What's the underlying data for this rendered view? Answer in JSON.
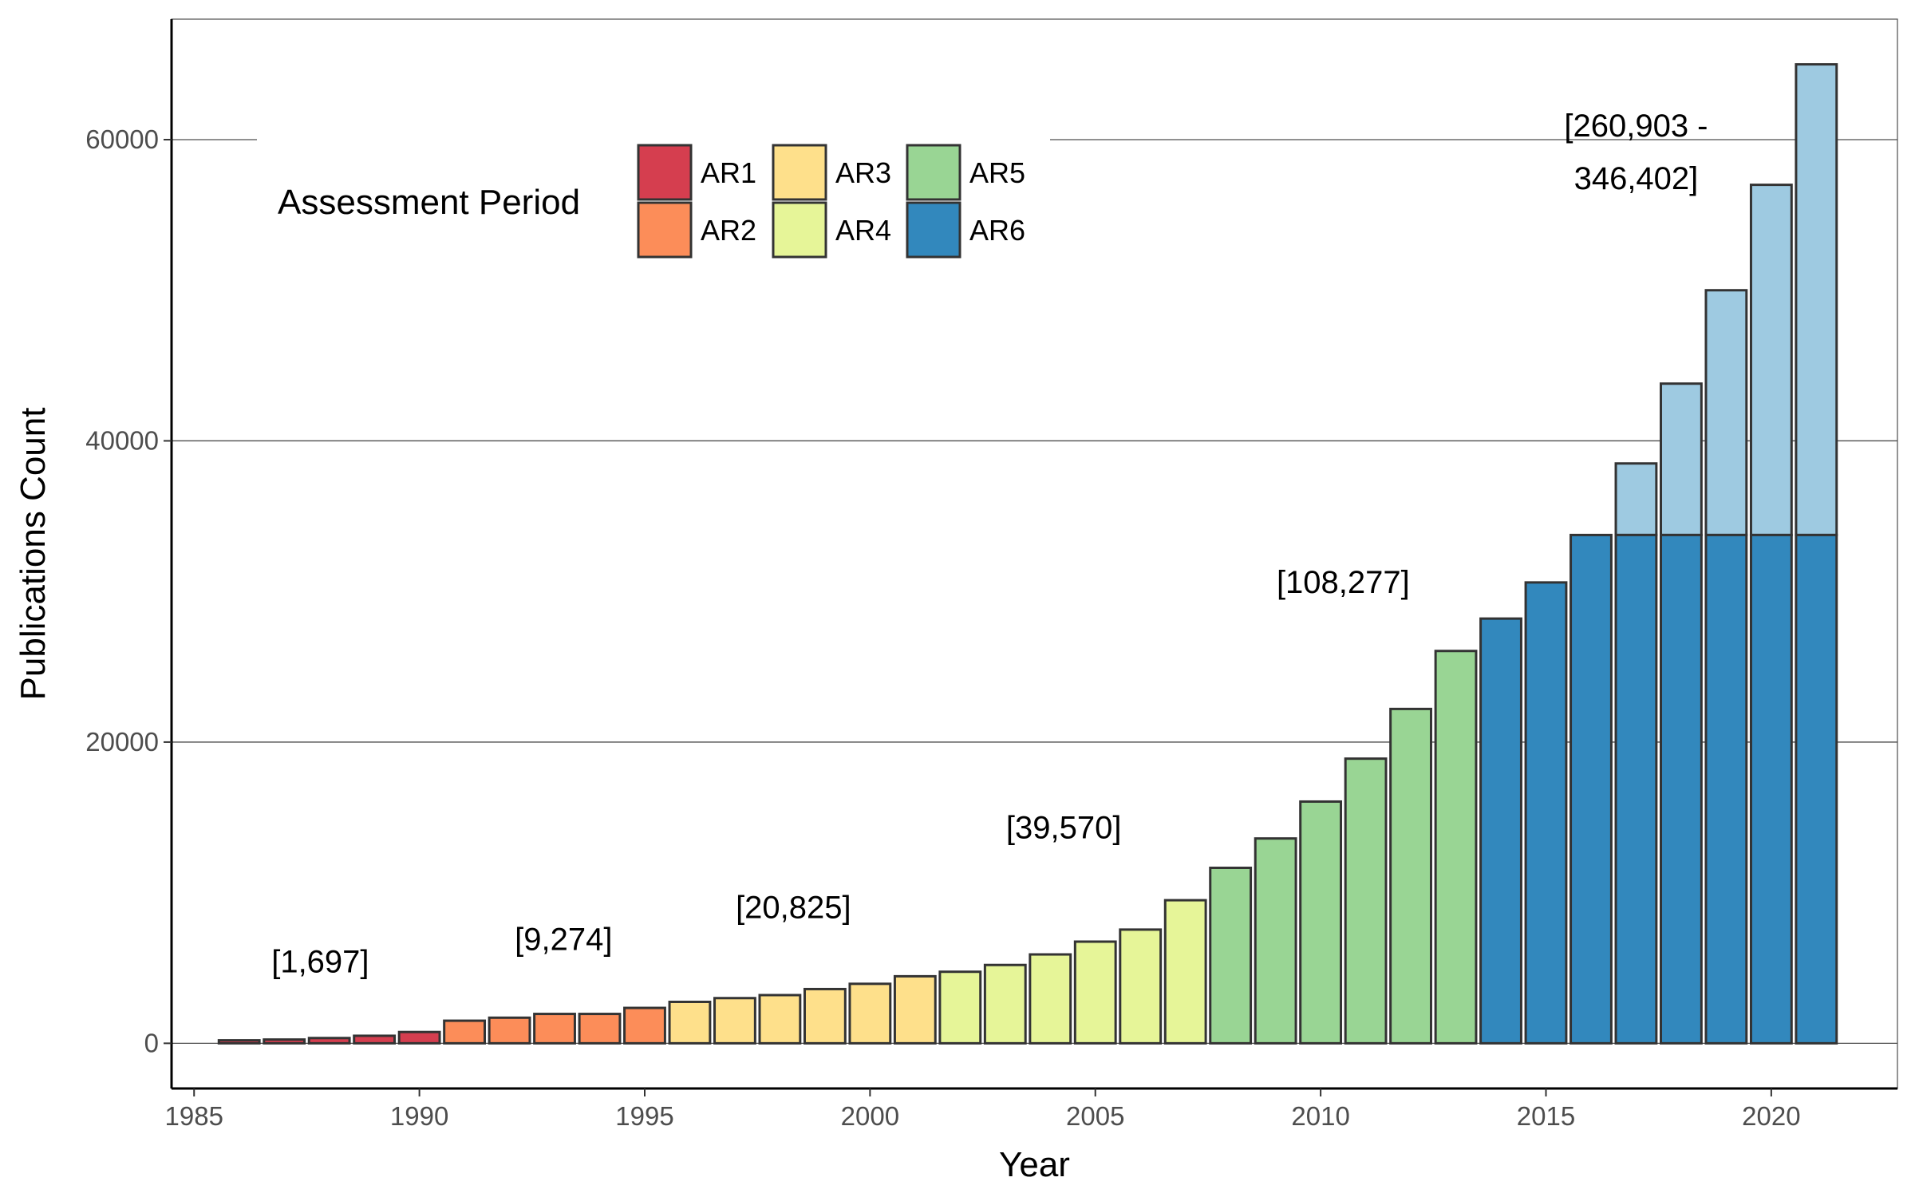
{
  "chart_data": {
    "type": "bar",
    "xlabel": "Year",
    "ylabel": "Publications Count",
    "xlim": [
      1984.5,
      2022.8
    ],
    "ylim": [
      -3000,
      68000
    ],
    "x_ticks": [
      "1985",
      "1990",
      "1995",
      "2000",
      "2005",
      "2010",
      "2015",
      "2020"
    ],
    "y_ticks": [
      "0",
      "20000",
      "40000",
      "60000"
    ],
    "grid": "horizontal major gridlines",
    "legend": {
      "title": "Assessment Period",
      "placement": "top-left",
      "entries": [
        {
          "label": "AR1",
          "color": "#d53e4f"
        },
        {
          "label": "AR2",
          "color": "#fc8d59"
        },
        {
          "label": "AR3",
          "color": "#fee08b"
        },
        {
          "label": "AR4",
          "color": "#e6f598"
        },
        {
          "label": "AR5",
          "color": "#99d594"
        },
        {
          "label": "AR6",
          "color": "#3288bd"
        }
      ]
    },
    "projection_color": "#9ecae1",
    "bars": [
      {
        "year": 1986,
        "period": "AR1",
        "value": 200
      },
      {
        "year": 1987,
        "period": "AR1",
        "value": 250
      },
      {
        "year": 1988,
        "period": "AR1",
        "value": 350
      },
      {
        "year": 1989,
        "period": "AR1",
        "value": 500
      },
      {
        "year": 1990,
        "period": "AR1",
        "value": 750
      },
      {
        "year": 1991,
        "period": "AR2",
        "value": 1500
      },
      {
        "year": 1992,
        "period": "AR2",
        "value": 1700
      },
      {
        "year": 1993,
        "period": "AR2",
        "value": 1950
      },
      {
        "year": 1994,
        "period": "AR2",
        "value": 1950
      },
      {
        "year": 1995,
        "period": "AR2",
        "value": 2350
      },
      {
        "year": 1996,
        "period": "AR3",
        "value": 2750
      },
      {
        "year": 1997,
        "period": "AR3",
        "value": 3000
      },
      {
        "year": 1998,
        "period": "AR3",
        "value": 3200
      },
      {
        "year": 1999,
        "period": "AR3",
        "value": 3600
      },
      {
        "year": 2000,
        "period": "AR3",
        "value": 3950
      },
      {
        "year": 2001,
        "period": "AR3",
        "value": 4450
      },
      {
        "year": 2002,
        "period": "AR4",
        "value": 4750
      },
      {
        "year": 2003,
        "period": "AR4",
        "value": 5200
      },
      {
        "year": 2004,
        "period": "AR4",
        "value": 5900
      },
      {
        "year": 2005,
        "period": "AR4",
        "value": 6750
      },
      {
        "year": 2006,
        "period": "AR4",
        "value": 7550
      },
      {
        "year": 2007,
        "period": "AR4",
        "value": 9500
      },
      {
        "year": 2008,
        "period": "AR5",
        "value": 11650
      },
      {
        "year": 2009,
        "period": "AR5",
        "value": 13600
      },
      {
        "year": 2010,
        "period": "AR5",
        "value": 16050
      },
      {
        "year": 2011,
        "period": "AR5",
        "value": 18900
      },
      {
        "year": 2012,
        "period": "AR5",
        "value": 22200
      },
      {
        "year": 2013,
        "period": "AR5",
        "value": 26050
      },
      {
        "year": 2014,
        "period": "AR6",
        "value": 28200
      },
      {
        "year": 2015,
        "period": "AR6",
        "value": 30600
      },
      {
        "year": 2016,
        "period": "AR6",
        "value": 33750
      },
      {
        "year": 2017,
        "period": "AR6",
        "value": 33750,
        "projected_total": 38500
      },
      {
        "year": 2018,
        "period": "AR6",
        "value": 33750,
        "projected_total": 43800
      },
      {
        "year": 2019,
        "period": "AR6",
        "value": 33750,
        "projected_total": 50000
      },
      {
        "year": 2020,
        "period": "AR6",
        "value": 33750,
        "projected_total": 57000
      },
      {
        "year": 2021,
        "period": "AR6",
        "value": 33750,
        "projected_total": 65000
      }
    ],
    "annotations": [
      {
        "lines": [
          "[1,697]"
        ],
        "x": 1987.8,
        "y": 4700
      },
      {
        "lines": [
          "[9,274]"
        ],
        "x": 1993.2,
        "y": 6200
      },
      {
        "lines": [
          "[20,825]"
        ],
        "x": 1998.3,
        "y": 8300
      },
      {
        "lines": [
          "[39,570]"
        ],
        "x": 2004.3,
        "y": 13600
      },
      {
        "lines": [
          "[108,277]"
        ],
        "x": 2010.5,
        "y": 29900
      },
      {
        "lines": [
          "[260,903 -",
          "346,402]"
        ],
        "x": 2017.0,
        "y": 60200
      }
    ]
  }
}
